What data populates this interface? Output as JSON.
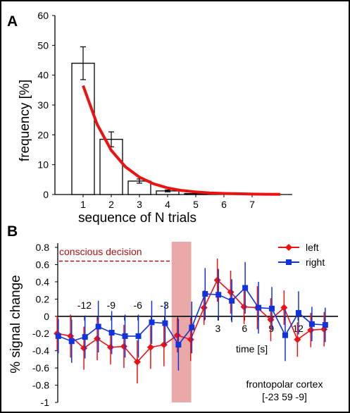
{
  "chart_data": [
    {
      "panel_label": "A",
      "type": "bar",
      "categories": [
        "1",
        "2",
        "3",
        "4",
        "5",
        "6",
        "7"
      ],
      "series": [
        {
          "kind": "bar",
          "values": [
            44,
            18.5,
            4.5,
            1.2,
            0.3,
            0,
            0
          ],
          "errors": [
            5.5,
            2.5,
            0.7,
            0.3,
            0.1,
            0,
            0
          ]
        },
        {
          "kind": "fit-line",
          "x": [
            1,
            1.5,
            2,
            2.5,
            3,
            3.5,
            4,
            4.5,
            5,
            5.5,
            6,
            6.5,
            7,
            7.5,
            8
          ],
          "values": [
            36.5,
            23.5,
            14.8,
            9.3,
            5.8,
            3.6,
            2.2,
            1.35,
            0.85,
            0.55,
            0.35,
            0.25,
            0.15,
            0.1,
            0.05
          ]
        }
      ],
      "title": "",
      "xlabel": "sequence of N trials",
      "ylabel": "frequency [%]",
      "ylim": [
        0,
        60
      ],
      "yticks": [
        "0",
        "10",
        "20",
        "30",
        "40",
        "50",
        "60"
      ]
    },
    {
      "panel_label": "B",
      "type": "line",
      "xlabel": "time [s]",
      "ylabel": "% signal change",
      "xlim": [
        -15,
        16.5
      ],
      "ylim": [
        -1,
        0.8
      ],
      "yticks": [
        "-1",
        "-0.8",
        "-0.6",
        "-0.4",
        "-0.2",
        "0",
        "0.2",
        "0.4",
        "0.6",
        "0.8"
      ],
      "xticks": [
        "-12",
        "-9",
        "-6",
        "-3",
        "3",
        "6",
        "9",
        "12"
      ],
      "x": [
        -15,
        -13.5,
        -12,
        -10.5,
        -9,
        -7.5,
        -6,
        -4.5,
        -3,
        -1.5,
        0,
        1.5,
        3,
        4.5,
        6,
        7.5,
        9,
        10.5,
        12,
        13.5,
        15
      ],
      "series": [
        {
          "name": "left",
          "color": "#ee1111",
          "marker": "diamond",
          "values": [
            -0.2,
            -0.23,
            -0.37,
            -0.26,
            -0.36,
            -0.35,
            -0.53,
            -0.36,
            -0.33,
            -0.22,
            -0.27,
            0.1,
            0.42,
            0.28,
            0.11,
            0.1,
            -0.04,
            0.1,
            -0.27,
            -0.16,
            -0.15
          ],
          "errors": [
            0.2,
            0.25,
            0.25,
            0.25,
            0.2,
            0.25,
            0.25,
            0.25,
            0.25,
            0.2,
            0.25,
            0.2,
            0.25,
            0.25,
            0.2,
            0.25,
            0.25,
            0.2,
            0.2,
            0.2,
            0.2
          ]
        },
        {
          "name": "right",
          "color": "#1133dd",
          "marker": "square",
          "values": [
            -0.23,
            -0.29,
            -0.24,
            -0.12,
            -0.19,
            -0.23,
            -0.23,
            -0.07,
            -0.08,
            -0.33,
            -0.13,
            0.26,
            0.25,
            0.18,
            0.33,
            0.1,
            0.09,
            -0.22,
            0.04,
            -0.09,
            -0.1
          ],
          "errors": [
            0.2,
            0.25,
            0.25,
            0.3,
            0.25,
            0.25,
            0.25,
            0.25,
            0.25,
            0.3,
            0.3,
            0.3,
            0.3,
            0.25,
            0.3,
            0.3,
            0.25,
            0.3,
            0.25,
            0.2,
            0.2
          ]
        }
      ],
      "annotations": {
        "decision_label": "conscious decision",
        "decision_line_y": 0.64,
        "decision_band_x": [
          -2.2,
          0
        ],
        "region_label": "frontopolar cortex",
        "coordinates_label": "[-23 59 -9]"
      },
      "legend_position": "top-right"
    }
  ]
}
